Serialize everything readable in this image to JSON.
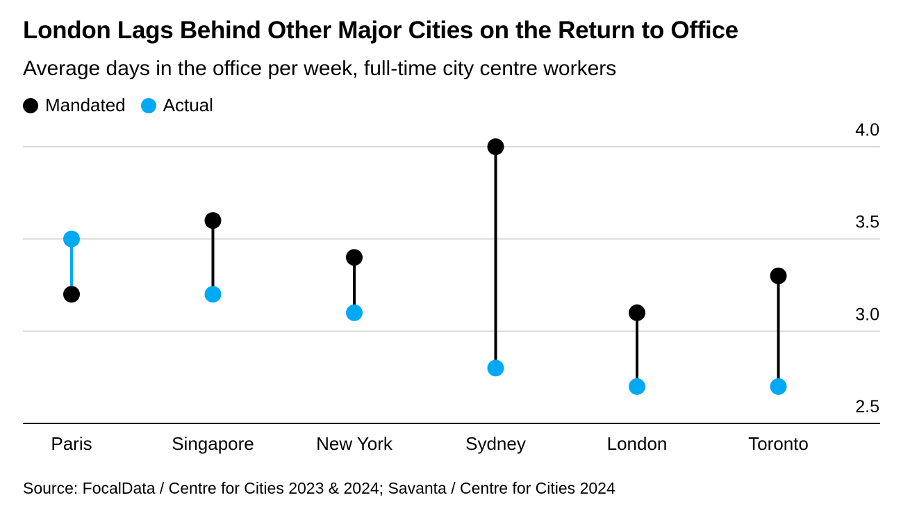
{
  "title": "London Lags Behind Other Major Cities on the Return to Office",
  "subtitle": "Average days in the office per week, full-time city centre workers",
  "legend": [
    {
      "label": "Mandated",
      "color": "#000000"
    },
    {
      "label": "Actual",
      "color": "#00a9f4"
    }
  ],
  "source": "Source: FocalData / Centre for Cities 2023 & 2024; Savanta / Centre for Cities 2024",
  "chart_data": {
    "type": "dot-range",
    "categories": [
      "Paris",
      "Singapore",
      "New York",
      "Sydney",
      "London",
      "Toronto"
    ],
    "series": [
      {
        "name": "Mandated",
        "color": "#000000",
        "values": [
          3.2,
          3.6,
          3.4,
          4.0,
          3.1,
          3.3
        ]
      },
      {
        "name": "Actual",
        "color": "#00a9f4",
        "values": [
          3.5,
          3.2,
          3.1,
          2.8,
          2.7,
          2.7
        ]
      }
    ],
    "ylim": [
      2.5,
      4.0
    ],
    "yticks": [
      "4.0",
      "3.5",
      "3.0",
      "2.5"
    ],
    "ytick_values": [
      4.0,
      3.5,
      3.0,
      2.5
    ],
    "grid": true,
    "y_axis_position": "right",
    "legend_position": "top-left"
  }
}
